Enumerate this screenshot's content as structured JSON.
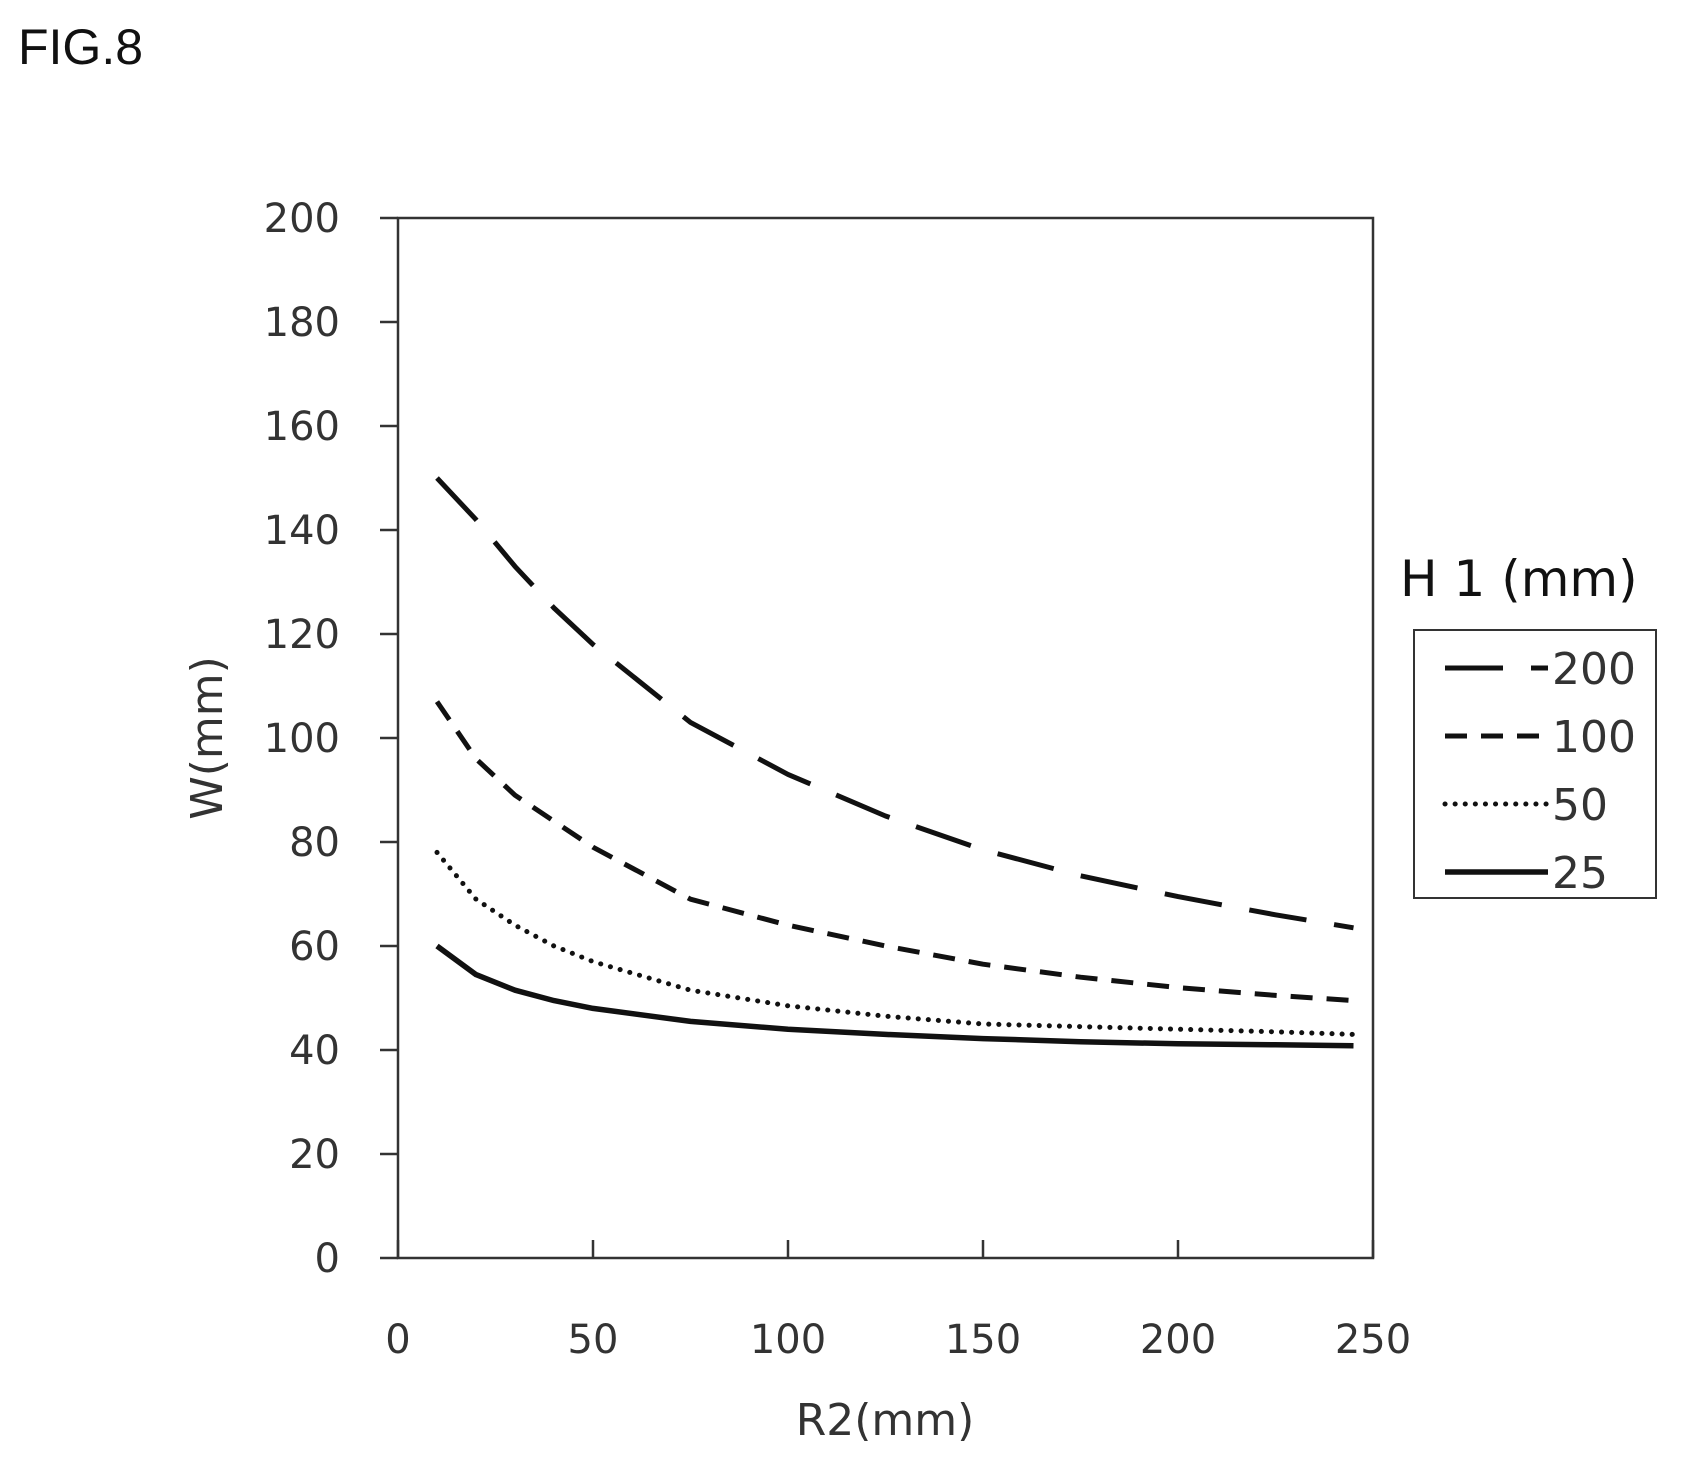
{
  "figure": {
    "label": "FIG.8"
  },
  "chart_data": {
    "type": "line",
    "title": "",
    "xlabel": "R2(mm)",
    "ylabel": "W(mm)",
    "xlim": [
      0,
      250
    ],
    "ylim": [
      0,
      200
    ],
    "x_ticks": [
      "0",
      "50",
      "100",
      "150",
      "200",
      "250"
    ],
    "y_ticks": [
      "0",
      "20",
      "40",
      "60",
      "80",
      "100",
      "120",
      "140",
      "160",
      "180",
      "200"
    ],
    "grid": false,
    "legend": {
      "title": "H 1 (mm)",
      "position": "right"
    },
    "x": [
      10,
      20,
      30,
      40,
      50,
      75,
      100,
      125,
      150,
      175,
      200,
      225,
      245
    ],
    "series": [
      {
        "name": "200",
        "style": "long-dash",
        "color": "#111111",
        "values": [
          150,
          142,
          133,
          125,
          118,
          103,
          93,
          85,
          78.5,
          73.5,
          69.5,
          66,
          63.5
        ]
      },
      {
        "name": "100",
        "style": "dash",
        "color": "#111111",
        "values": [
          107,
          96,
          89,
          84,
          79,
          69,
          64,
          60,
          56.5,
          54,
          52,
          50.5,
          49.5
        ]
      },
      {
        "name": "50",
        "style": "dotted",
        "color": "#111111",
        "values": [
          78,
          69,
          64,
          60,
          57,
          51.5,
          48.5,
          46.5,
          45,
          44.5,
          44,
          43.5,
          43
        ]
      },
      {
        "name": "25",
        "style": "solid",
        "color": "#111111",
        "values": [
          60,
          54.5,
          51.5,
          49.5,
          48,
          45.5,
          44,
          43,
          42.2,
          41.6,
          41.2,
          41,
          40.8
        ]
      }
    ]
  }
}
